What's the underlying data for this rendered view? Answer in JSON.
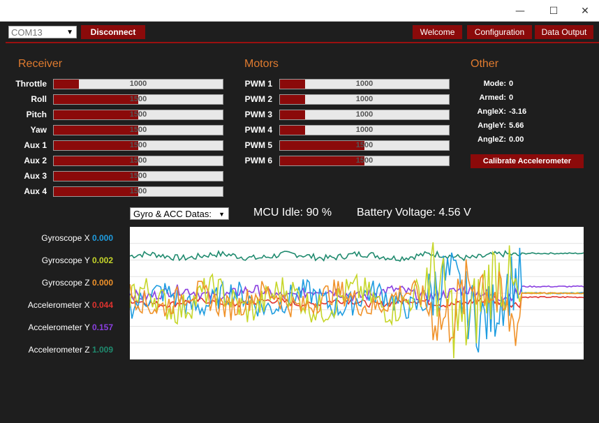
{
  "window": {
    "controls": {
      "minimize": "—",
      "maximize": "☐",
      "close": "✕"
    }
  },
  "toolbar": {
    "port": "COM13",
    "disconnect_label": "Disconnect",
    "welcome_label": "Welcome",
    "configuration_label": "Configuration",
    "data_output_label": "Data Output"
  },
  "receiver": {
    "title": "Receiver",
    "channels": [
      {
        "label": "Throttle",
        "value": "1000",
        "level": 0.15
      },
      {
        "label": "Roll",
        "value": "1500",
        "level": 0.5
      },
      {
        "label": "Pitch",
        "value": "1500",
        "level": 0.5
      },
      {
        "label": "Yaw",
        "value": "1500",
        "level": 0.5
      },
      {
        "label": "Aux 1",
        "value": "1500",
        "level": 0.5
      },
      {
        "label": "Aux 2",
        "value": "1500",
        "level": 0.5
      },
      {
        "label": "Aux 3",
        "value": "1500",
        "level": 0.5
      },
      {
        "label": "Aux 4",
        "value": "1500",
        "level": 0.5
      }
    ]
  },
  "motors": {
    "title": "Motors",
    "channels": [
      {
        "label": "PWM 1",
        "value": "1000",
        "level": 0.15
      },
      {
        "label": "PWM 2",
        "value": "1000",
        "level": 0.15
      },
      {
        "label": "PWM 3",
        "value": "1000",
        "level": 0.15
      },
      {
        "label": "PWM 4",
        "value": "1000",
        "level": 0.15
      },
      {
        "label": "PWM 5",
        "value": "1500",
        "level": 0.5
      },
      {
        "label": "PWM 6",
        "value": "1500",
        "level": 0.5
      }
    ]
  },
  "other": {
    "title": "Other",
    "items": [
      {
        "label": "Mode:",
        "value": "0"
      },
      {
        "label": "Armed:",
        "value": "0"
      },
      {
        "label": "AngleX:",
        "value": "-3.16"
      },
      {
        "label": "AngleY:",
        "value": "5.66"
      },
      {
        "label": "AngleZ:",
        "value": "0.00"
      }
    ],
    "calibrate_label": "Calibrate Accelerometer"
  },
  "status": {
    "data_mode": "Gyro & ACC Datas:",
    "mcu_idle": "MCU Idle: 90 %",
    "battery": "Battery Voltage: 4.56 V"
  },
  "sensors": [
    {
      "label": "Gyroscope X",
      "value": "0.000",
      "color": "#1f9de0"
    },
    {
      "label": "Gyroscope Y",
      "value": "0.002",
      "color": "#c6d62a"
    },
    {
      "label": "Gyroscope Z",
      "value": "0.000",
      "color": "#f0922a"
    },
    {
      "label": "Accelerometer X",
      "value": "0.044",
      "color": "#e0332f"
    },
    {
      "label": "Accelerometer Y",
      "value": "0.157",
      "color": "#8a3fe0"
    },
    {
      "label": "Accelerometer Z",
      "value": "1.009",
      "color": "#1f8a6e"
    }
  ],
  "chart_data": {
    "type": "line",
    "grid": true,
    "series": [
      {
        "name": "Accelerometer Z",
        "color": "#1f8a6e",
        "baseline": 0.78,
        "amp": 0.03,
        "tail": 0.8
      },
      {
        "name": "Accelerometer X",
        "color": "#e0332f",
        "baseline": 0.43,
        "amp": 0.03,
        "tail": 0.47
      },
      {
        "name": "Accelerometer Y",
        "color": "#8a3fe0",
        "baseline": 0.5,
        "amp": 0.05,
        "tail": 0.55
      },
      {
        "name": "Gyroscope X",
        "color": "#1f9de0",
        "baseline": 0.45,
        "amp": 0.12,
        "tail": 0.5
      },
      {
        "name": "Gyroscope Y",
        "color": "#c6d62a",
        "baseline": 0.45,
        "amp": 0.15,
        "tail": 0.5
      },
      {
        "name": "Gyroscope Z",
        "color": "#f0922a",
        "baseline": 0.45,
        "amp": 0.12,
        "tail": 0.5
      }
    ]
  }
}
